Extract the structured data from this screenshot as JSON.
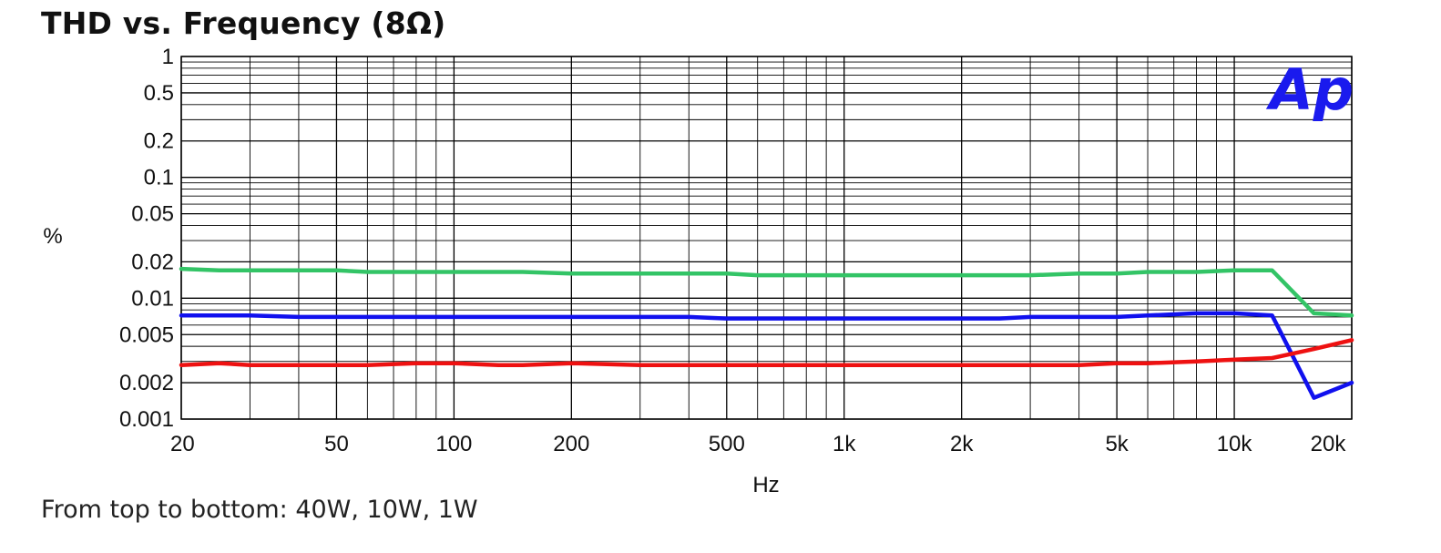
{
  "title": "THD vs. Frequency (8Ω)",
  "caption": "From top to bottom: 40W, 10W, 1W",
  "logo_text": "Ap",
  "chart_data": {
    "type": "line",
    "title": "THD vs. Frequency (8Ω)",
    "xlabel": "Hz",
    "ylabel": "%",
    "x_scale": "log",
    "y_scale": "log",
    "xlim": [
      20,
      20000
    ],
    "ylim": [
      0.001,
      1
    ],
    "grid": true,
    "x_ticks": [
      {
        "value": 20,
        "label": "20"
      },
      {
        "value": 50,
        "label": "50"
      },
      {
        "value": 100,
        "label": "100"
      },
      {
        "value": 200,
        "label": "200"
      },
      {
        "value": 500,
        "label": "500"
      },
      {
        "value": 1000,
        "label": "1k"
      },
      {
        "value": 2000,
        "label": "2k"
      },
      {
        "value": 5000,
        "label": "5k"
      },
      {
        "value": 10000,
        "label": "10k"
      },
      {
        "value": 20000,
        "label": "20k"
      }
    ],
    "y_ticks": [
      {
        "value": 1,
        "label": "1"
      },
      {
        "value": 0.5,
        "label": "0.5"
      },
      {
        "value": 0.2,
        "label": "0.2"
      },
      {
        "value": 0.1,
        "label": "0.1"
      },
      {
        "value": 0.05,
        "label": "0.05"
      },
      {
        "value": 0.02,
        "label": "0.02"
      },
      {
        "value": 0.01,
        "label": "0.01"
      },
      {
        "value": 0.005,
        "label": "0.005"
      },
      {
        "value": 0.002,
        "label": "0.002"
      },
      {
        "value": 0.001,
        "label": "0.001"
      }
    ],
    "series": [
      {
        "color": "#33c466",
        "x": [
          20,
          25,
          30,
          40,
          50,
          60,
          70,
          100,
          150,
          200,
          300,
          400,
          500,
          600,
          700,
          1000,
          2000,
          3000,
          4000,
          5000,
          6000,
          8000,
          10000,
          12500,
          16000,
          20000
        ],
        "y": [
          0.0175,
          0.017,
          0.017,
          0.017,
          0.017,
          0.0165,
          0.0165,
          0.0165,
          0.0165,
          0.016,
          0.016,
          0.016,
          0.016,
          0.0155,
          0.0155,
          0.0155,
          0.0155,
          0.0155,
          0.016,
          0.016,
          0.0165,
          0.0165,
          0.017,
          0.017,
          0.0075,
          0.0072
        ]
      },
      {
        "color": "#1010ee",
        "x": [
          20,
          25,
          30,
          40,
          50,
          100,
          200,
          400,
          500,
          700,
          1000,
          2000,
          2500,
          3000,
          5000,
          6000,
          8000,
          10000,
          12500,
          16000,
          20000
        ],
        "y": [
          0.0072,
          0.0072,
          0.0072,
          0.007,
          0.007,
          0.007,
          0.007,
          0.007,
          0.0068,
          0.0068,
          0.0068,
          0.0068,
          0.0068,
          0.007,
          0.007,
          0.0072,
          0.0075,
          0.0075,
          0.0072,
          0.0015,
          0.002
        ]
      },
      {
        "color": "#ee1111",
        "x": [
          20,
          25,
          30,
          50,
          60,
          80,
          100,
          130,
          150,
          200,
          300,
          1000,
          2000,
          4000,
          5000,
          6000,
          8000,
          10000,
          12500,
          16000,
          20000
        ],
        "y": [
          0.0028,
          0.0029,
          0.0028,
          0.0028,
          0.0028,
          0.0029,
          0.0029,
          0.0028,
          0.0028,
          0.0029,
          0.0028,
          0.0028,
          0.0028,
          0.0028,
          0.0029,
          0.0029,
          0.003,
          0.0031,
          0.0032,
          0.0038,
          0.0045
        ]
      }
    ]
  }
}
